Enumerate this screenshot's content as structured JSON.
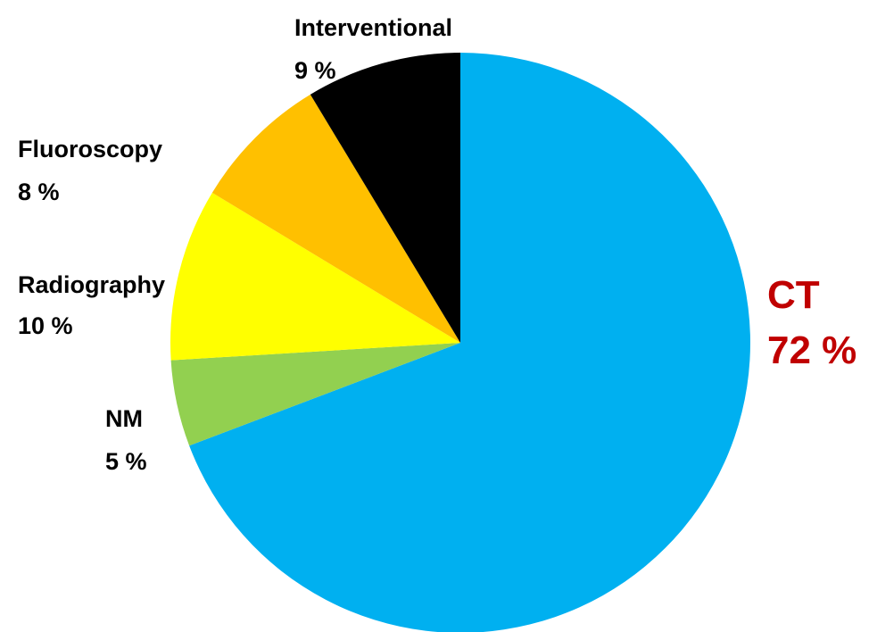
{
  "chart_data": {
    "type": "pie",
    "slices": [
      {
        "label": "CT",
        "value": 72,
        "value_label": "72 %",
        "color": "#00B0F0",
        "label_color": "#C00000"
      },
      {
        "label": "NM",
        "value": 5,
        "value_label": "5 %",
        "color": "#92D050",
        "label_color": "#000000"
      },
      {
        "label": "Radiography",
        "value": 10,
        "value_label": "10 %",
        "color": "#FFFF00",
        "label_color": "#000000"
      },
      {
        "label": "Fluoroscopy",
        "value": 8,
        "value_label": "8 %",
        "color": "#FFC000",
        "label_color": "#000000"
      },
      {
        "label": "Interventional",
        "value": 9,
        "value_label": "9 %",
        "color": "#000000",
        "label_color": "#000000"
      }
    ],
    "start_angle": "12 o'clock",
    "direction": "clockwise",
    "legend": "none"
  }
}
